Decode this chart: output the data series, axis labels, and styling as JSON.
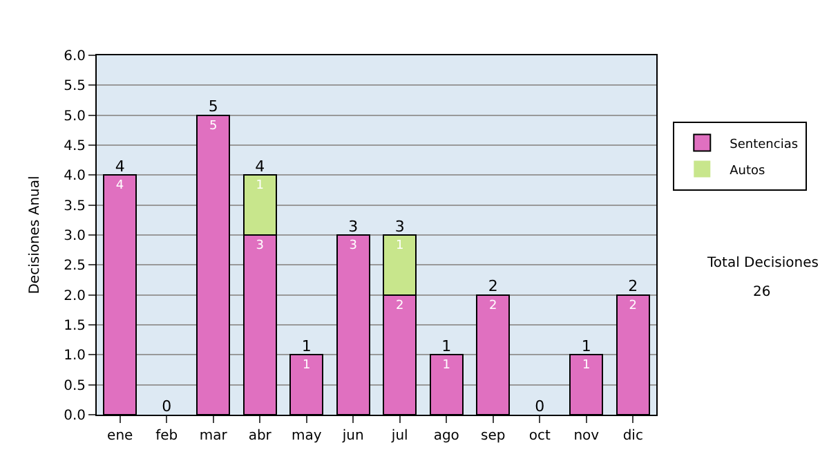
{
  "chart_data": {
    "type": "bar",
    "stacked": true,
    "ylabel": "Decisiones Anual",
    "categories": [
      "ene",
      "feb",
      "mar",
      "abr",
      "may",
      "jun",
      "jul",
      "ago",
      "sep",
      "oct",
      "nov",
      "dic"
    ],
    "series": [
      {
        "name": "Sentencias",
        "color": "#e070c0",
        "values": [
          4,
          0,
          5,
          3,
          1,
          3,
          2,
          1,
          2,
          0,
          1,
          2
        ],
        "value_labels": [
          "4",
          null,
          "5",
          "3",
          "1",
          "3",
          "2",
          "1",
          "2",
          null,
          "1",
          "2"
        ]
      },
      {
        "name": "Autos",
        "color": "#c8e68c",
        "values": [
          0,
          0,
          0,
          1,
          0,
          0,
          1,
          0,
          0,
          0,
          0,
          0
        ],
        "value_labels": [
          null,
          null,
          null,
          "1",
          null,
          null,
          "1",
          null,
          null,
          null,
          null,
          null
        ]
      }
    ],
    "totals": [
      "4",
      "0",
      "5",
      "4",
      "1",
      "3",
      "3",
      "1",
      "2",
      "0",
      "1",
      "2"
    ],
    "ylim": [
      0,
      6
    ],
    "yticks": [
      {
        "value": 0,
        "label": "0.0"
      },
      {
        "value": 0.5,
        "label": "0.5"
      },
      {
        "value": 1,
        "label": "1.0"
      },
      {
        "value": 1.5,
        "label": "1.5"
      },
      {
        "value": 2,
        "label": "2.0"
      },
      {
        "value": 2.5,
        "label": "2.5"
      },
      {
        "value": 3,
        "label": "3.0"
      },
      {
        "value": 3.5,
        "label": "3.5"
      },
      {
        "value": 4,
        "label": "4.0"
      },
      {
        "value": 4.5,
        "label": "4.5"
      },
      {
        "value": 5,
        "label": "5.0"
      },
      {
        "value": 5.5,
        "label": "5.5"
      },
      {
        "value": 6,
        "label": "6.0"
      }
    ],
    "grid": "y",
    "legend": "right",
    "annotations": [
      "Total Decisiones",
      "26"
    ]
  }
}
